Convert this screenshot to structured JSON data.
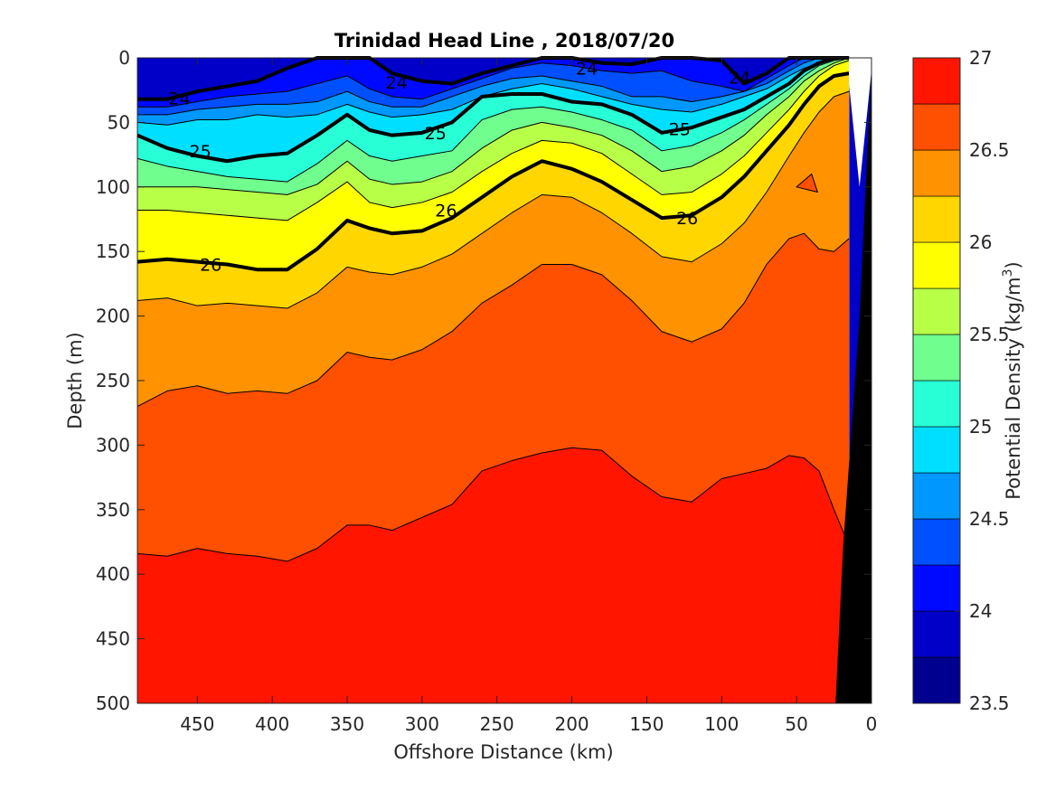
{
  "chart_data": {
    "type": "heatmap",
    "subtype": "filled-contour section",
    "title": "Trinidad Head Line , 2018/07/20",
    "xlabel": "Offshore Distance (km)",
    "ylabel": "Depth (m)",
    "xlim": [
      490,
      0
    ],
    "ylim": [
      0,
      500
    ],
    "x_reversed": true,
    "y_reversed": true,
    "xticks": [
      "450",
      "400",
      "350",
      "300",
      "250",
      "200",
      "150",
      "100",
      "50",
      "0"
    ],
    "yticks": [
      "0",
      "50",
      "100",
      "150",
      "200",
      "250",
      "300",
      "350",
      "400",
      "450",
      "500"
    ],
    "colorbar": {
      "label_prefix": "Potential Density (kg/m",
      "label_exp": "3",
      "label_suffix": ")",
      "range": [
        23.5,
        27
      ],
      "step": 0.25,
      "ticks": [
        "23.5",
        "24",
        "24.5",
        "25",
        "25.5",
        "26",
        "26.5",
        "27"
      ],
      "colors": [
        "#00008f",
        "#0000c8",
        "#0009ff",
        "#0050ff",
        "#0097ff",
        "#00dfff",
        "#29ffd6",
        "#70ff8f",
        "#b8ff47",
        "#ffff00",
        "#ffd600",
        "#ff9200",
        "#ff4f00",
        "#ff1500",
        "#c00000"
      ]
    },
    "x_stations_km": [
      490,
      470,
      450,
      430,
      410,
      390,
      370,
      350,
      335,
      320,
      300,
      280,
      260,
      240,
      220,
      200,
      180,
      160,
      140,
      120,
      100,
      85,
      70,
      55,
      45,
      35,
      25,
      15
    ],
    "contours": [
      {
        "level": 24.0,
        "depth": [
          32,
          32,
          26,
          22,
          18,
          8,
          0,
          0,
          0,
          12,
          18,
          20,
          12,
          6,
          0,
          0,
          4,
          5,
          0,
          0,
          2,
          20,
          12,
          0,
          0,
          0,
          0,
          0
        ]
      },
      {
        "level": 24.25,
        "depth": [
          38,
          38,
          34,
          30,
          28,
          26,
          20,
          14,
          24,
          30,
          32,
          24,
          16,
          8,
          4,
          6,
          10,
          12,
          10,
          18,
          22,
          26,
          16,
          6,
          0,
          0,
          0,
          0
        ]
      },
      {
        "level": 24.5,
        "depth": [
          44,
          44,
          40,
          38,
          36,
          36,
          34,
          26,
          34,
          38,
          38,
          30,
          22,
          16,
          14,
          18,
          22,
          30,
          30,
          34,
          30,
          26,
          20,
          10,
          4,
          0,
          0,
          0
        ]
      },
      {
        "level": 24.75,
        "depth": [
          50,
          52,
          48,
          48,
          44,
          46,
          44,
          36,
          42,
          46,
          44,
          40,
          30,
          24,
          20,
          24,
          30,
          36,
          40,
          42,
          36,
          30,
          24,
          14,
          8,
          4,
          2,
          0
        ]
      },
      {
        "level": 25.0,
        "depth": [
          60,
          70,
          76,
          80,
          76,
          74,
          60,
          44,
          56,
          60,
          58,
          50,
          30,
          28,
          28,
          34,
          36,
          44,
          58,
          54,
          46,
          40,
          30,
          20,
          10,
          4,
          0,
          0
        ]
      },
      {
        "level": 25.25,
        "depth": [
          78,
          84,
          88,
          92,
          94,
          96,
          82,
          64,
          76,
          80,
          76,
          72,
          48,
          40,
          38,
          42,
          48,
          56,
          72,
          68,
          58,
          48,
          36,
          24,
          14,
          6,
          2,
          0
        ]
      },
      {
        "level": 25.5,
        "depth": [
          100,
          100,
          100,
          102,
          104,
          106,
          98,
          80,
          94,
          98,
          96,
          88,
          70,
          56,
          50,
          54,
          60,
          72,
          88,
          84,
          72,
          60,
          44,
          30,
          18,
          10,
          4,
          0
        ]
      },
      {
        "level": 25.75,
        "depth": [
          118,
          118,
          120,
          122,
          124,
          126,
          112,
          96,
          112,
          116,
          112,
          104,
          88,
          74,
          64,
          66,
          74,
          90,
          106,
          104,
          90,
          76,
          58,
          40,
          26,
          14,
          6,
          2
        ]
      },
      {
        "level": 26.0,
        "depth": [
          158,
          156,
          158,
          160,
          164,
          164,
          148,
          126,
          132,
          136,
          134,
          124,
          108,
          92,
          80,
          86,
          96,
          110,
          124,
          122,
          108,
          92,
          72,
          52,
          36,
          22,
          14,
          12
        ]
      },
      {
        "level": 26.25,
        "depth": [
          188,
          186,
          192,
          190,
          192,
          194,
          182,
          162,
          166,
          168,
          162,
          152,
          136,
          120,
          106,
          108,
          120,
          136,
          154,
          158,
          144,
          128,
          104,
          76,
          58,
          42,
          30,
          26
        ]
      },
      {
        "level": 26.5,
        "depth": [
          270,
          258,
          254,
          260,
          258,
          260,
          250,
          228,
          232,
          234,
          226,
          212,
          190,
          176,
          160,
          160,
          168,
          188,
          212,
          220,
          210,
          190,
          160,
          140,
          136,
          148,
          150,
          140
        ]
      },
      {
        "level": 26.75,
        "depth": [
          384,
          386,
          380,
          384,
          386,
          390,
          380,
          362,
          362,
          366,
          356,
          346,
          320,
          312,
          306,
          302,
          304,
          324,
          340,
          344,
          326,
          322,
          318,
          308,
          310,
          320,
          350,
          378
        ]
      }
    ],
    "contour_labels": [
      {
        "text": "24",
        "x_km": 462,
        "depth": 31
      },
      {
        "text": "24",
        "x_km": 317,
        "depth": 19
      },
      {
        "text": "24",
        "x_km": 190,
        "depth": 8
      },
      {
        "text": "24",
        "x_km": 88,
        "depth": 15
      },
      {
        "text": "25",
        "x_km": 448,
        "depth": 72
      },
      {
        "text": "25",
        "x_km": 291,
        "depth": 58
      },
      {
        "text": "25",
        "x_km": 128,
        "depth": 55
      },
      {
        "text": "26",
        "x_km": 284,
        "depth": 118
      },
      {
        "text": "26",
        "x_km": 123,
        "depth": 124
      },
      {
        "text": "26",
        "x_km": 441,
        "depth": 160
      }
    ],
    "patch": {
      "level": 26.5,
      "x_km": [
        50,
        40,
        36
      ],
      "depth": [
        100,
        90,
        104
      ]
    },
    "bathymetry": {
      "x_km": [
        0,
        8,
        15,
        19,
        22,
        25,
        35
      ],
      "depth": [
        5,
        200,
        380,
        600,
        800,
        500,
        500
      ]
    }
  }
}
